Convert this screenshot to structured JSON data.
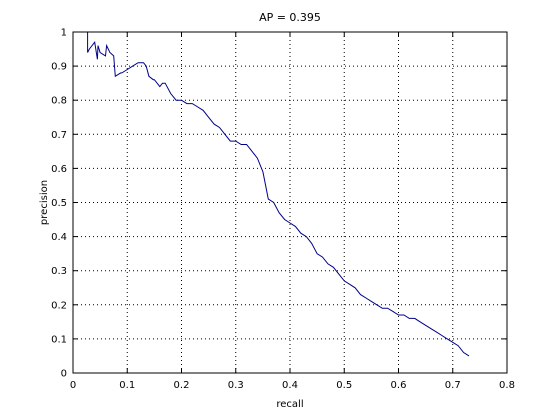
{
  "chart_data": {
    "type": "line",
    "title": "AP = 0.395",
    "xlabel": "recall",
    "ylabel": "precision",
    "xlim": [
      0,
      0.8
    ],
    "ylim": [
      0,
      1
    ],
    "x_ticks": [
      0,
      0.1,
      0.2,
      0.3,
      0.4,
      0.5,
      0.6,
      0.7,
      0.8
    ],
    "x_tick_labels": [
      "0",
      "0.1",
      "0.2",
      "0.3",
      "0.4",
      "0.5",
      "0.6",
      "0.7",
      "0.8"
    ],
    "y_ticks": [
      0,
      0.1,
      0.2,
      0.3,
      0.4,
      0.5,
      0.6,
      0.7,
      0.8,
      0.9,
      1
    ],
    "y_tick_labels": [
      "0",
      "0.1",
      "0.2",
      "0.3",
      "0.4",
      "0.5",
      "0.6",
      "0.7",
      "0.8",
      "0.9",
      "1"
    ],
    "grid": true,
    "line_color": "#00008b",
    "series": [
      {
        "x": [
          0.027,
          0.027,
          0.03,
          0.04,
          0.045,
          0.046,
          0.05,
          0.06,
          0.062,
          0.068,
          0.075,
          0.078,
          0.088,
          0.09,
          0.1,
          0.11,
          0.12,
          0.13,
          0.135,
          0.14,
          0.148,
          0.15,
          0.16,
          0.165,
          0.17,
          0.18,
          0.19,
          0.2,
          0.21,
          0.22,
          0.23,
          0.24,
          0.25,
          0.26,
          0.27,
          0.28,
          0.29,
          0.3,
          0.31,
          0.32,
          0.33,
          0.34,
          0.35,
          0.355,
          0.36,
          0.37,
          0.38,
          0.39,
          0.4,
          0.41,
          0.42,
          0.43,
          0.44,
          0.45,
          0.46,
          0.47,
          0.48,
          0.49,
          0.5,
          0.51,
          0.52,
          0.53,
          0.54,
          0.55,
          0.56,
          0.57,
          0.58,
          0.59,
          0.6,
          0.61,
          0.62,
          0.63,
          0.64,
          0.65,
          0.66,
          0.67,
          0.68,
          0.69,
          0.7,
          0.71,
          0.72,
          0.73
        ],
        "y": [
          1.0,
          0.94,
          0.95,
          0.97,
          0.92,
          0.96,
          0.94,
          0.93,
          0.96,
          0.94,
          0.93,
          0.87,
          0.88,
          0.88,
          0.89,
          0.9,
          0.91,
          0.91,
          0.9,
          0.87,
          0.86,
          0.86,
          0.84,
          0.85,
          0.85,
          0.82,
          0.8,
          0.8,
          0.79,
          0.79,
          0.78,
          0.77,
          0.75,
          0.73,
          0.72,
          0.7,
          0.68,
          0.68,
          0.67,
          0.67,
          0.65,
          0.63,
          0.59,
          0.55,
          0.51,
          0.5,
          0.47,
          0.45,
          0.44,
          0.43,
          0.41,
          0.4,
          0.38,
          0.35,
          0.34,
          0.32,
          0.31,
          0.29,
          0.27,
          0.26,
          0.25,
          0.23,
          0.22,
          0.21,
          0.2,
          0.19,
          0.19,
          0.18,
          0.17,
          0.17,
          0.16,
          0.16,
          0.15,
          0.14,
          0.13,
          0.12,
          0.11,
          0.1,
          0.09,
          0.08,
          0.06,
          0.05
        ]
      }
    ]
  }
}
